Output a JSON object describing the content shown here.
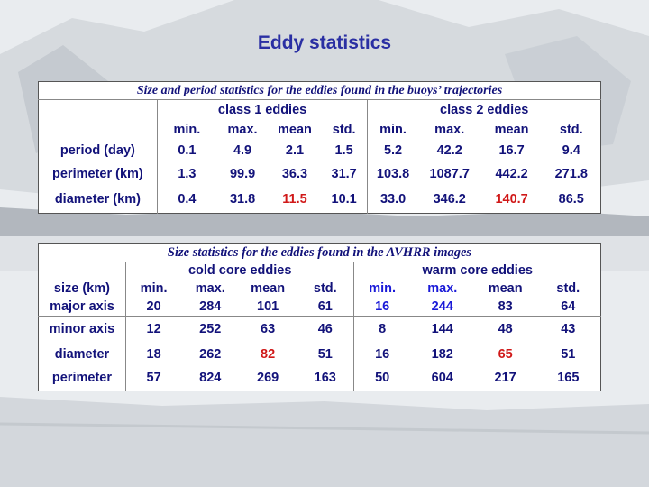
{
  "slide": {
    "title": "Eddy statistics",
    "colors": {
      "title": "#2a2fa3",
      "text": "#12127a",
      "highlight_red": "#d01818",
      "highlight_blue": "#1a1ad8"
    }
  },
  "table1": {
    "caption": "Size and period statistics for the eddies found in the buoys’ trajectories",
    "groups": [
      "class 1 eddies",
      "class 2 eddies"
    ],
    "columns": [
      "min.",
      "max.",
      "mean",
      "std.",
      "min.",
      "max.",
      "mean",
      "std."
    ],
    "rows": [
      {
        "label": "period (day)",
        "cells": [
          "0.1",
          "4.9",
          "2.1",
          "1.5",
          "5.2",
          "42.2",
          "16.7",
          "9.4"
        ]
      },
      {
        "label": "perimeter (km)",
        "cells": [
          "1.3",
          "99.9",
          "36.3",
          "31.7",
          "103.8",
          "1087.7",
          "442.2",
          "271.8"
        ]
      },
      {
        "label": "diameter (km)",
        "cells": [
          "0.4",
          "31.8",
          "11.5",
          "10.1",
          "33.0",
          "346.2",
          "140.7",
          "86.5"
        ]
      }
    ]
  },
  "table2": {
    "caption": "Size statistics for the eddies found in the AVHRR images",
    "groups": [
      "cold core eddies",
      "warm core eddies"
    ],
    "unit_label": "size (km)",
    "columns": [
      "min.",
      "max.",
      "mean",
      "std.",
      "min.",
      "max.",
      "mean",
      "std."
    ],
    "rows": [
      {
        "label": "major axis",
        "cells": [
          "20",
          "284",
          "101",
          "61",
          "16",
          "244",
          "83",
          "64"
        ]
      },
      {
        "label": "minor axis",
        "cells": [
          "12",
          "252",
          "63",
          "46",
          "8",
          "144",
          "48",
          "43"
        ]
      },
      {
        "label": "diameter",
        "cells": [
          "18",
          "262",
          "82",
          "51",
          "16",
          "182",
          "65",
          "51"
        ]
      },
      {
        "label": "perimeter",
        "cells": [
          "57",
          "824",
          "269",
          "163",
          "50",
          "604",
          "217",
          "165"
        ]
      }
    ]
  }
}
